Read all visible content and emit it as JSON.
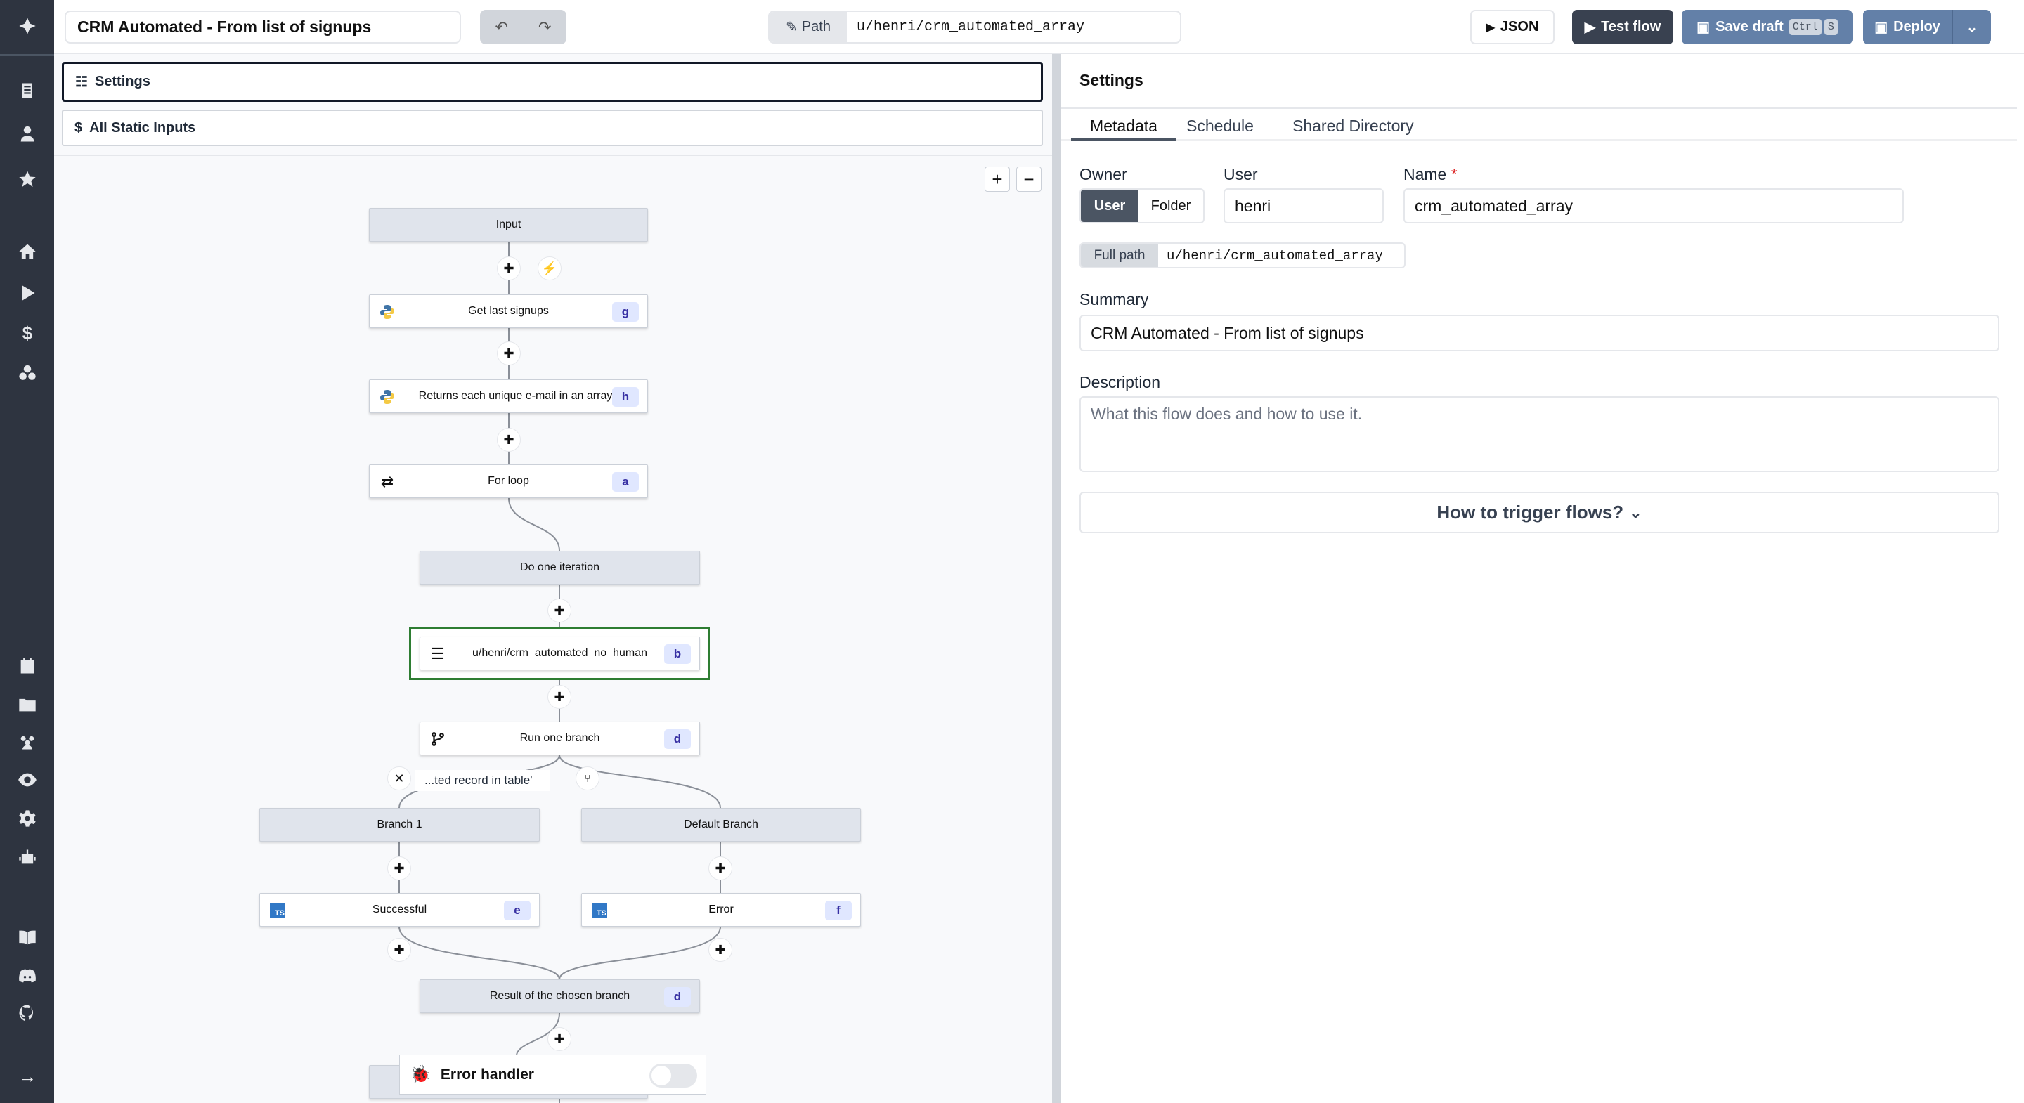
{
  "header": {
    "flow_title": "CRM Automated - From list of signups",
    "undo_icon": "undo-icon",
    "redo_icon": "redo-icon",
    "path_label": "Path",
    "path_value": "u/henri/crm_automated_array",
    "json_label": "JSON",
    "test_flow_label": "Test flow",
    "save_draft_label": "Save draft",
    "save_shortcut": [
      "Ctrl",
      "S"
    ],
    "deploy_label": "Deploy"
  },
  "sidebar": {
    "icons": [
      "windmill-logo",
      "scripts-icon",
      "user-icon",
      "star-icon",
      "home-icon",
      "runs-icon",
      "dollar-icon",
      "resources-icon",
      "schedule-icon",
      "folder-icon",
      "groups-icon",
      "audit-icon",
      "settings-icon",
      "bot-icon",
      "docs-icon",
      "discord-icon",
      "github-icon",
      "expand-icon"
    ]
  },
  "left": {
    "settings_label": "Settings",
    "static_inputs_label": "All Static Inputs"
  },
  "flow": {
    "nodes": [
      {
        "label": "Input"
      },
      {
        "label": "Get last signups",
        "badge": "g",
        "icon": "python-icon"
      },
      {
        "label": "Returns each unique e-mail in an array",
        "badge": "h",
        "icon": "python-icon"
      },
      {
        "label": "For loop",
        "badge": "a",
        "icon": "loop-icon"
      },
      {
        "label": "Do one iteration"
      },
      {
        "label": "u/henri/crm_automated_no_human",
        "badge": "b",
        "icon": "list-icon"
      },
      {
        "label": "Run one branch",
        "badge": "d",
        "icon": "branch-icon"
      },
      {
        "label": "Branch 1"
      },
      {
        "label": "Default Branch"
      },
      {
        "label": "Successful",
        "badge": "e",
        "icon": "typescript-icon"
      },
      {
        "label": "Error",
        "badge": "f",
        "icon": "typescript-icon"
      },
      {
        "label": "Result of the chosen branch",
        "badge": "d"
      }
    ],
    "branch_condition": "...ted record in table'",
    "ts_icon_text": "TS",
    "error_handler_label": "Error handler",
    "error_handler_enabled": false
  },
  "settings": {
    "title": "Settings",
    "tabs": [
      "Metadata",
      "Schedule",
      "Shared Directory"
    ],
    "active_tab": "Metadata",
    "owner_label": "Owner",
    "owner_options": [
      "User",
      "Folder"
    ],
    "owner_selected": "User",
    "user_label": "User",
    "user_value": "henri",
    "name_label": "Name",
    "required_mark": "*",
    "name_value": "crm_automated_array",
    "full_path_label": "Full path",
    "full_path_value": "u/henri/crm_automated_array",
    "summary_label": "Summary",
    "summary_value": "CRM Automated - From list of signups",
    "description_label": "Description",
    "description_placeholder": "What this flow does and how to use it.",
    "trigger_label": "How to trigger flows?"
  },
  "colors": {
    "sidebar": "#2e3440",
    "primary_dark": "#394150",
    "accent_blue": "#6380a8",
    "selected_border": "#2e7d32",
    "badge_bg": "#e0e7ff"
  }
}
